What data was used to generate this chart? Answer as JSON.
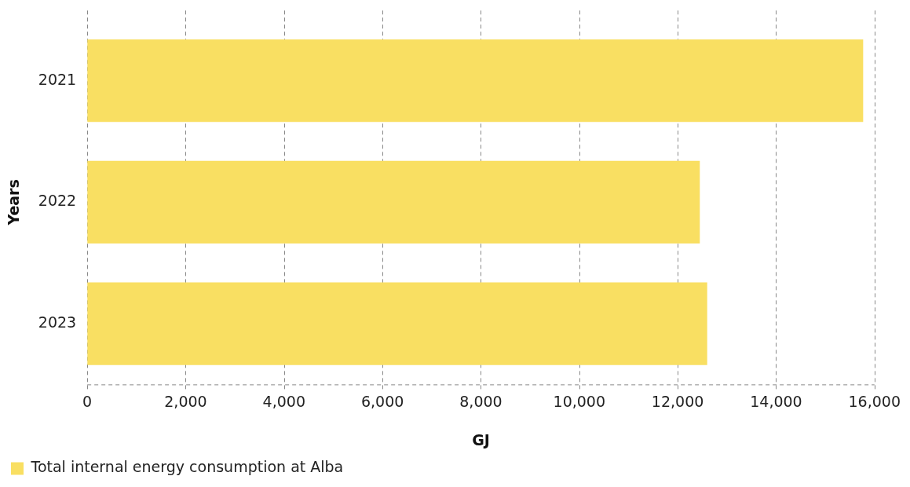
{
  "chart_data": {
    "type": "bar",
    "orientation": "horizontal",
    "xlabel": "GJ",
    "ylabel": "Years",
    "categories": [
      "2021",
      "2022",
      "2023"
    ],
    "series": [
      {
        "name": "Total internal energy consumption at Alba",
        "color": "#f9df62",
        "values": [
          15770,
          12450,
          12600
        ]
      }
    ],
    "xlim": [
      0,
      16000
    ],
    "xticks": [
      {
        "value": 0,
        "label": "0"
      },
      {
        "value": 2000,
        "label": "2,000"
      },
      {
        "value": 4000,
        "label": "4,000"
      },
      {
        "value": 6000,
        "label": "6,000"
      },
      {
        "value": 8000,
        "label": "8,000"
      },
      {
        "value": 10000,
        "label": "10,000"
      },
      {
        "value": 12000,
        "label": "12,000"
      },
      {
        "value": 14000,
        "label": "14,000"
      },
      {
        "value": 16000,
        "label": "16,000"
      }
    ],
    "grid": "x",
    "legend": "bottom left"
  }
}
